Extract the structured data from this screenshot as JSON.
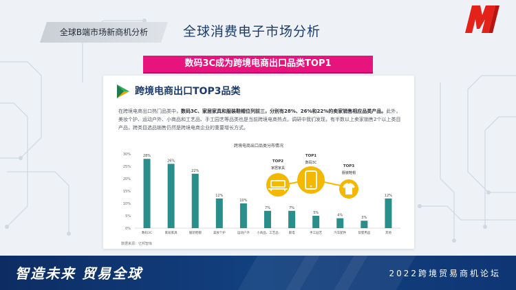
{
  "header": {
    "tag": "全球B端市场新商机分析",
    "title": "全球消费电子市场分析",
    "logo_icon": "m-brand-logo"
  },
  "banner": "数码3C成为跨境电商出口品类TOP1",
  "card": {
    "title": "跨境电商出口TOP3品类",
    "para_part1": "在跨境电商出口热门品类中，",
    "para_bold": "数码3C、家居家具和服装鞋帽位列前三，分别有28%、26%和22%的卖家销售相应品类产品。",
    "para_part2": "此外，美妆个护、运动户外、小商品和工艺品、手工园艺等品类也是当前跨境电商热点。调研中我们发现，有半数以上卖家销售2个以上类目产品，跨类目选品销售仍然是跨境电商企业的重要增长方式。"
  },
  "chart_data": {
    "type": "bar",
    "title": "跨境电商出口品类分布情况",
    "categories": [
      "数码3C",
      "家居家具",
      "服装鞋帽",
      "美妆个护",
      "运动户外",
      "小商品、工艺品",
      "家电",
      "手工园艺",
      "汽车配件",
      "母婴用品",
      "其他"
    ],
    "values": [
      28,
      26,
      22,
      12,
      10,
      7,
      7,
      5,
      4,
      3,
      12
    ],
    "value_labels": [
      "28%",
      "26%",
      "22%",
      "12%",
      "10%",
      "7%",
      "7%",
      "5%",
      "4%",
      "3%",
      "12%"
    ],
    "yticks": [
      "0%",
      "5%",
      "10%",
      "15%",
      "20%",
      "25%",
      "30%"
    ],
    "ylim": [
      0,
      30
    ],
    "grid": false,
    "bar_color": "#2a8f8a",
    "source": "数据来源：亿邦智库"
  },
  "top3": [
    {
      "rank": "TOP1",
      "name": "数码3C",
      "icon": "smartphone-icon"
    },
    {
      "rank": "TOP2",
      "name": "家居家具",
      "icon": "sofa-icon"
    },
    {
      "rank": "TOP3",
      "name": "服装鞋帽",
      "icon": "tshirt-icon"
    }
  ],
  "footer": {
    "slogan": "智造未来 贸易全球",
    "forum": "2022跨境贸易商机论坛"
  },
  "colors": {
    "accent": "#e6147c",
    "navy": "#0d2c64",
    "gold": "#f5b800",
    "teal": "#2a8f8a"
  }
}
